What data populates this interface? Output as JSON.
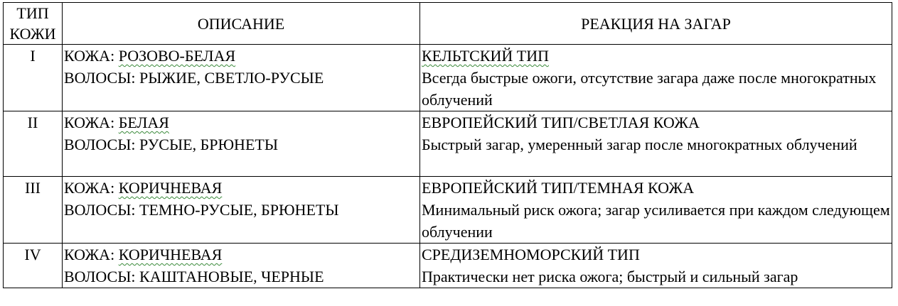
{
  "headers": {
    "type_line1": "ТИП",
    "type_line2": "КОЖИ",
    "description": "ОПИСАНИЕ",
    "reaction": "РЕАКЦИЯ НА ЗАГАР"
  },
  "rows": [
    {
      "type": "I",
      "skin_label": "КОЖА: ",
      "skin": "РОЗОВО-БЕЛАЯ",
      "hair": "ВОЛОСЫ: РЫЖИЕ, СВЕТЛО-РУСЫЕ",
      "reaction_title": "КЕЛЬТСКИЙ ТИП",
      "reaction_text": "Всегда быстрые ожоги, отсутствие загара даже после многократных облучений"
    },
    {
      "type": "II",
      "skin_label": "КОЖА: ",
      "skin": "БЕЛАЯ",
      "hair": "ВОЛОСЫ: РУСЫЕ, БРЮНЕТЫ",
      "reaction_title": "ЕВРОПЕЙСКИЙ ТИП/СВЕТЛАЯ КОЖА",
      "reaction_text": "Быстрый загар, умеренный загар после многократных облучений"
    },
    {
      "type": "III",
      "skin_label": "КОЖА: ",
      "skin": "КОРИЧНЕВАЯ",
      "hair": "ВОЛОСЫ: ТЕМНО-РУСЫЕ, БРЮНЕТЫ",
      "reaction_title": "ЕВРОПЕЙСКИЙ ТИП/ТЕМНАЯ КОЖА",
      "reaction_text": "Минимальный риск ожога; загар усиливается при каждом следующем облучении"
    },
    {
      "type": "IV",
      "skin_label": "КОЖА: ",
      "skin": "КОРИЧНЕВАЯ",
      "hair": "ВОЛОСЫ: КАШТАНОВЫЕ, ЧЕРНЫЕ",
      "reaction_title": "СРЕДИЗЕМНОМОРСКИЙ ТИП",
      "reaction_text": "Практически нет риска ожога; быстрый и сильный загар"
    }
  ]
}
